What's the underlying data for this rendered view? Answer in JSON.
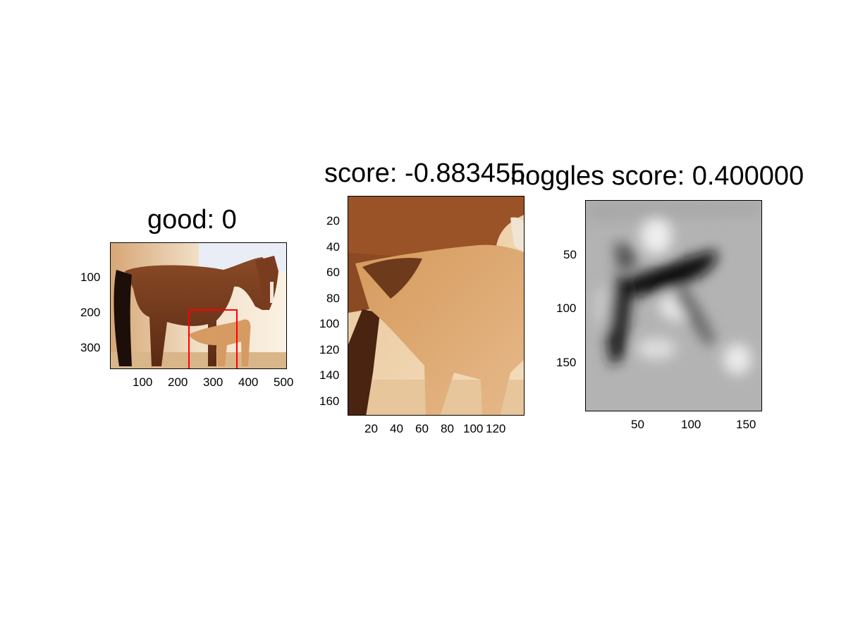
{
  "panels": [
    {
      "title": "good: 0",
      "image": "horse-and-foal-photo",
      "y_ticks": [
        "100",
        "200",
        "300"
      ],
      "x_ticks": [
        "100",
        "200",
        "300",
        "400",
        "500"
      ],
      "xlim": [
        0,
        500
      ],
      "ylim": [
        0,
        360
      ],
      "box_color": "#ff0000"
    },
    {
      "title": "score: -0.883455",
      "image": "foal-crop-photo",
      "y_ticks": [
        "20",
        "40",
        "60",
        "80",
        "100",
        "120",
        "140",
        "160"
      ],
      "x_ticks": [
        "20",
        "40",
        "60",
        "80",
        "100",
        "120"
      ],
      "xlim": [
        0,
        138
      ],
      "ylim": [
        0,
        172
      ]
    },
    {
      "title": "hoggles score: 0.400000",
      "image": "grayscale-hoggles-reconstruction",
      "y_ticks": [
        "50",
        "100",
        "150"
      ],
      "x_ticks": [
        "50",
        "100",
        "150"
      ],
      "xlim": [
        0,
        162
      ],
      "ylim": [
        0,
        196
      ]
    }
  ],
  "colors": {
    "background": "#ffffff",
    "axis": "#000000",
    "box": "#ff0000"
  }
}
